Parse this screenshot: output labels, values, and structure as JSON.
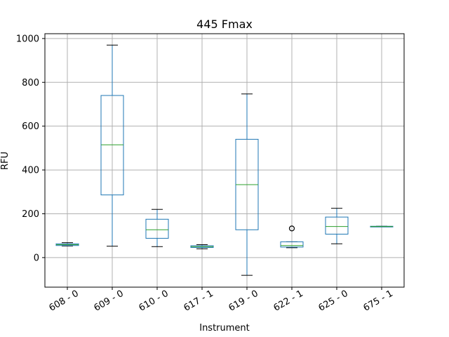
{
  "chart_data": {
    "type": "box",
    "title": "445 Fmax",
    "xlabel": "Instrument",
    "ylabel": "RFU",
    "ylim": [
      -135,
      1022
    ],
    "yticks": [
      0,
      200,
      400,
      600,
      800,
      1000
    ],
    "grid": true,
    "colors": {
      "box": "#1f77b4",
      "median": "#2ca02c",
      "whisker": "#1f77b4",
      "cap": "#000000",
      "flier": "#000000",
      "grid": "#b0b0b0"
    },
    "categories": [
      "608 - 0",
      "609 - 0",
      "610 - 0",
      "617 - 1",
      "619 - 0",
      "622 - 1",
      "625 - 0",
      "675 - 1"
    ],
    "boxes": [
      {
        "whislo": 53,
        "q1": 55,
        "med": 59,
        "q3": 63,
        "whishi": 68,
        "fliers": []
      },
      {
        "whislo": 52,
        "q1": 286,
        "med": 515,
        "q3": 740,
        "whishi": 970,
        "fliers": []
      },
      {
        "whislo": 50,
        "q1": 88,
        "med": 127,
        "q3": 175,
        "whishi": 220,
        "fliers": []
      },
      {
        "whislo": 40,
        "q1": 46,
        "med": 50,
        "q3": 54,
        "whishi": 59,
        "fliers": []
      },
      {
        "whislo": -81,
        "q1": 127,
        "med": 333,
        "q3": 540,
        "whishi": 747,
        "fliers": []
      },
      {
        "whislo": 45,
        "q1": 48,
        "med": 55,
        "q3": 72,
        "whishi": 72,
        "fliers": [
          133
        ]
      },
      {
        "whislo": 63,
        "q1": 107,
        "med": 142,
        "q3": 185,
        "whishi": 225,
        "fliers": []
      },
      {
        "whislo": 142,
        "q1": 142,
        "med": 142,
        "q3": 143,
        "whishi": 143,
        "fliers": []
      }
    ]
  }
}
